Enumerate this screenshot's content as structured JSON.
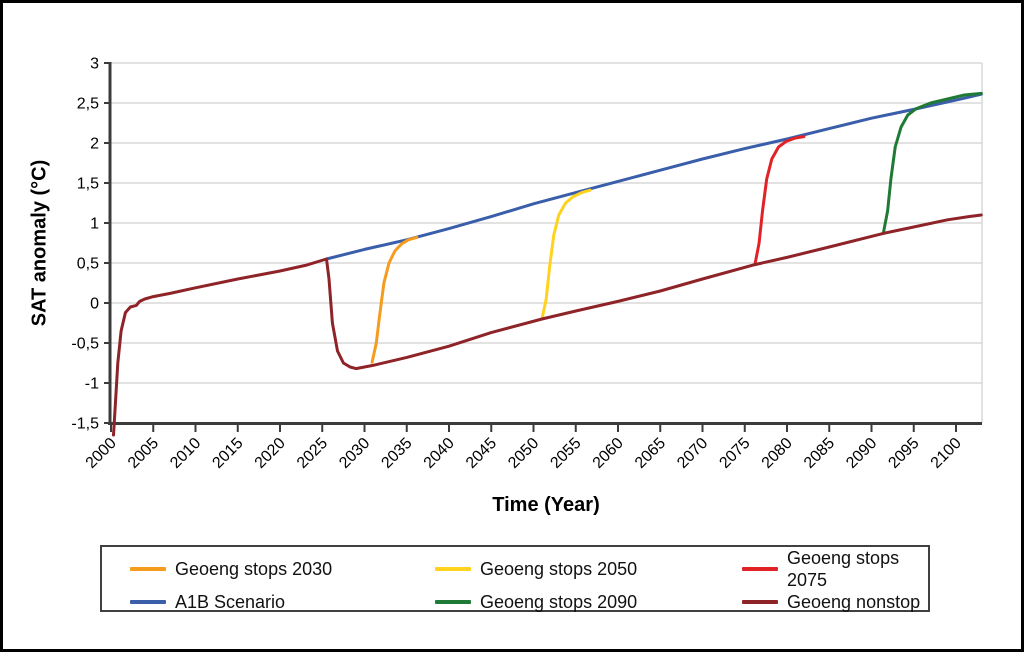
{
  "figure": {
    "background": "#FFFFFF",
    "frame_border": "#000000"
  },
  "chart_data": {
    "type": "line",
    "title": "",
    "xlabel": "Time (Year)",
    "ylabel": "SAT anomaly (°C)",
    "xlim": [
      2000,
      2104
    ],
    "ylim": [
      -1.5,
      3
    ],
    "grid": "horizontal",
    "legend_position": "bottom",
    "x_ticks": [
      2000,
      2005,
      2010,
      2015,
      2020,
      2025,
      2030,
      2035,
      2040,
      2045,
      2050,
      2055,
      2060,
      2065,
      2070,
      2075,
      2080,
      2085,
      2090,
      2095,
      2100
    ],
    "y_tick_values": [
      3,
      2.5,
      2,
      1.5,
      1,
      0.5,
      0,
      -0.5,
      -1,
      -1.5
    ],
    "y_tick_labels": [
      "3",
      "2,5",
      "2",
      "1,5",
      "1",
      "0,5",
      "0",
      "-0,5",
      "-1",
      "-1,5"
    ],
    "colors": {
      "grid": "#D9D9D9",
      "axis": "#3B3B3B",
      "tick_text": "#000000",
      "legend_border": "#404040"
    },
    "series": [
      {
        "name": "A1B Scenario",
        "color": "#3A5EA9",
        "points": [
          [
            2025.5,
            0.55
          ],
          [
            2030,
            0.67
          ],
          [
            2035,
            0.79
          ],
          [
            2040,
            0.93
          ],
          [
            2045,
            1.08
          ],
          [
            2050,
            1.24
          ],
          [
            2055,
            1.38
          ],
          [
            2060,
            1.52
          ],
          [
            2065,
            1.66
          ],
          [
            2070,
            1.8
          ],
          [
            2075,
            1.93
          ],
          [
            2080,
            2.05
          ],
          [
            2085,
            2.18
          ],
          [
            2090,
            2.31
          ],
          [
            2095,
            2.42
          ],
          [
            2098,
            2.49
          ],
          [
            2101,
            2.56
          ],
          [
            2103,
            2.61
          ]
        ]
      },
      {
        "name": "Geoeng stops 2030",
        "color": "#F59C1F",
        "points": [
          [
            2030.9,
            -0.74
          ],
          [
            2031.4,
            -0.5
          ],
          [
            2031.8,
            -0.15
          ],
          [
            2032.3,
            0.25
          ],
          [
            2032.9,
            0.5
          ],
          [
            2033.6,
            0.65
          ],
          [
            2034.4,
            0.74
          ],
          [
            2035.2,
            0.79
          ],
          [
            2036.2,
            0.82
          ]
        ]
      },
      {
        "name": "Geoeng stops 2050",
        "color": "#FFD21F",
        "points": [
          [
            2051.0,
            -0.2
          ],
          [
            2051.5,
            0.05
          ],
          [
            2051.9,
            0.45
          ],
          [
            2052.4,
            0.85
          ],
          [
            2053.0,
            1.1
          ],
          [
            2053.8,
            1.25
          ],
          [
            2054.7,
            1.33
          ],
          [
            2055.7,
            1.38
          ],
          [
            2056.7,
            1.41
          ]
        ]
      },
      {
        "name": "Geoeng stops 2075",
        "color": "#E12328",
        "points": [
          [
            2076.2,
            0.48
          ],
          [
            2076.7,
            0.75
          ],
          [
            2077.1,
            1.15
          ],
          [
            2077.6,
            1.55
          ],
          [
            2078.2,
            1.8
          ],
          [
            2079.0,
            1.95
          ],
          [
            2079.9,
            2.02
          ],
          [
            2080.9,
            2.06
          ],
          [
            2082.0,
            2.08
          ]
        ]
      },
      {
        "name": "Geoeng stops 2090",
        "color": "#1E7A34",
        "points": [
          [
            2091.4,
            0.87
          ],
          [
            2091.9,
            1.15
          ],
          [
            2092.3,
            1.55
          ],
          [
            2092.8,
            1.95
          ],
          [
            2093.5,
            2.2
          ],
          [
            2094.3,
            2.35
          ],
          [
            2095.3,
            2.43
          ],
          [
            2097.0,
            2.5
          ],
          [
            2099.0,
            2.55
          ],
          [
            2101.0,
            2.6
          ],
          [
            2103.0,
            2.62
          ]
        ]
      },
      {
        "name": "Geoeng nonstop",
        "color": "#8E2328",
        "points": [
          [
            2000.3,
            -1.65
          ],
          [
            2000.5,
            -1.3
          ],
          [
            2000.8,
            -0.75
          ],
          [
            2001.2,
            -0.35
          ],
          [
            2001.7,
            -0.12
          ],
          [
            2002.3,
            -0.05
          ],
          [
            2003.0,
            -0.03
          ],
          [
            2003.4,
            0.02
          ],
          [
            2004.0,
            0.05
          ],
          [
            2005.0,
            0.08
          ],
          [
            2007.0,
            0.12
          ],
          [
            2010.0,
            0.19
          ],
          [
            2015.0,
            0.3
          ],
          [
            2020.0,
            0.4
          ],
          [
            2023.0,
            0.47
          ],
          [
            2025.5,
            0.55
          ],
          [
            2025.8,
            0.3
          ],
          [
            2026.2,
            -0.25
          ],
          [
            2026.8,
            -0.6
          ],
          [
            2027.5,
            -0.75
          ],
          [
            2028.3,
            -0.8
          ],
          [
            2029.0,
            -0.82
          ],
          [
            2031.0,
            -0.78
          ],
          [
            2035.0,
            -0.68
          ],
          [
            2040.0,
            -0.54
          ],
          [
            2045.0,
            -0.37
          ],
          [
            2051.0,
            -0.2
          ],
          [
            2055.0,
            -0.1
          ],
          [
            2060.0,
            0.02
          ],
          [
            2065.0,
            0.15
          ],
          [
            2070.0,
            0.3
          ],
          [
            2076.2,
            0.48
          ],
          [
            2080.0,
            0.57
          ],
          [
            2085.0,
            0.7
          ],
          [
            2091.4,
            0.87
          ],
          [
            2095.0,
            0.95
          ],
          [
            2099.0,
            1.04
          ],
          [
            2101.5,
            1.08
          ],
          [
            2103.0,
            1.1
          ]
        ]
      }
    ],
    "legend_items": [
      "Geoeng stops 2030",
      "Geoeng stops 2050",
      "Geoeng stops 2075",
      "A1B Scenario",
      "Geoeng stops 2090",
      "Geoeng nonstop"
    ]
  }
}
